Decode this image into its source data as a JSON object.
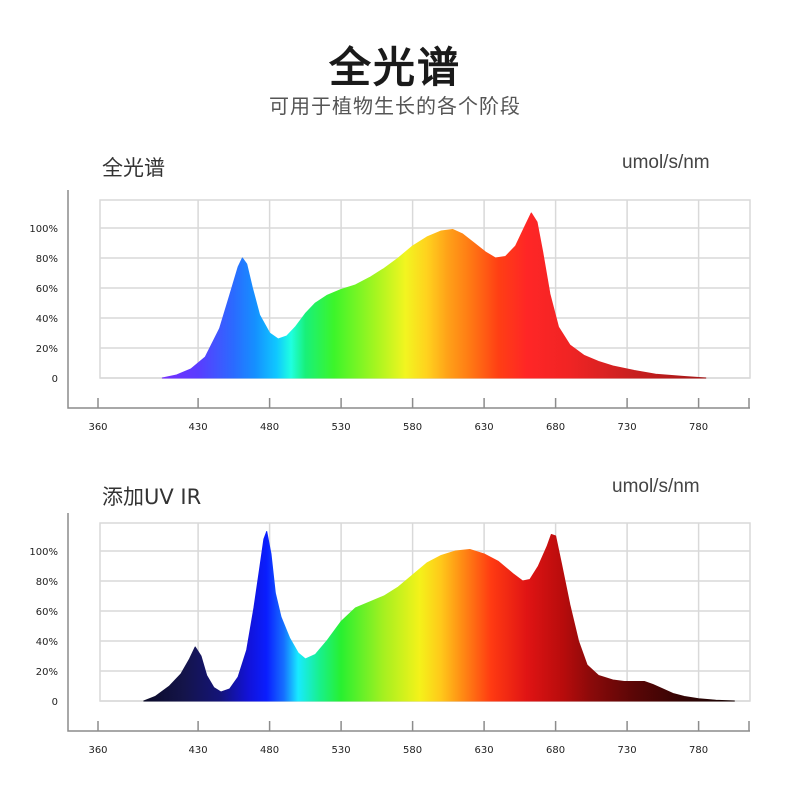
{
  "header": {
    "title": "全光谱",
    "subtitle": "可用于植物生长的各个阶段"
  },
  "chart_data": [
    {
      "type": "area",
      "title": "全光谱",
      "unit": "umol/s/nm",
      "xlabel": "",
      "ylabel": "",
      "x_ticks": [
        360,
        430,
        480,
        530,
        580,
        630,
        680,
        730,
        780
      ],
      "y_ticks": [
        0,
        20,
        40,
        60,
        80,
        100
      ],
      "y_tick_labels": [
        "0",
        "20%",
        "40%",
        "60%",
        "80%",
        "100%"
      ],
      "grid": true,
      "colormap": "visible-spectrum",
      "points": [
        [
          405,
          0
        ],
        [
          415,
          2
        ],
        [
          425,
          6
        ],
        [
          435,
          14
        ],
        [
          445,
          33
        ],
        [
          452,
          55
        ],
        [
          458,
          74
        ],
        [
          461,
          80
        ],
        [
          464,
          76
        ],
        [
          468,
          60
        ],
        [
          473,
          42
        ],
        [
          480,
          30
        ],
        [
          486,
          26
        ],
        [
          492,
          28
        ],
        [
          498,
          34
        ],
        [
          505,
          43
        ],
        [
          512,
          50
        ],
        [
          520,
          55
        ],
        [
          530,
          59
        ],
        [
          540,
          62
        ],
        [
          550,
          67
        ],
        [
          560,
          73
        ],
        [
          570,
          80
        ],
        [
          580,
          88
        ],
        [
          590,
          94
        ],
        [
          600,
          98
        ],
        [
          608,
          99
        ],
        [
          615,
          96
        ],
        [
          623,
          90
        ],
        [
          631,
          84
        ],
        [
          638,
          80
        ],
        [
          645,
          81
        ],
        [
          652,
          88
        ],
        [
          658,
          100
        ],
        [
          663,
          110
        ],
        [
          667,
          104
        ],
        [
          671,
          84
        ],
        [
          676,
          56
        ],
        [
          682,
          34
        ],
        [
          690,
          22
        ],
        [
          700,
          15
        ],
        [
          710,
          11
        ],
        [
          720,
          8
        ],
        [
          735,
          5
        ],
        [
          750,
          2.5
        ],
        [
          770,
          1
        ],
        [
          785,
          0
        ]
      ]
    },
    {
      "type": "area",
      "title": "添加UV IR",
      "unit": "umol/s/nm",
      "xlabel": "",
      "ylabel": "",
      "x_ticks": [
        360,
        430,
        480,
        530,
        580,
        630,
        680,
        730,
        780
      ],
      "y_ticks": [
        0,
        20,
        40,
        60,
        80,
        100
      ],
      "y_tick_labels": [
        "0",
        "20%",
        "40%",
        "60%",
        "80%",
        "100%"
      ],
      "grid": true,
      "colormap": "extended-spectrum",
      "points": [
        [
          392,
          0
        ],
        [
          400,
          3
        ],
        [
          410,
          10
        ],
        [
          418,
          18
        ],
        [
          424,
          28
        ],
        [
          428,
          36
        ],
        [
          432,
          30
        ],
        [
          436,
          17
        ],
        [
          441,
          9
        ],
        [
          446,
          6
        ],
        [
          452,
          8
        ],
        [
          458,
          16
        ],
        [
          464,
          34
        ],
        [
          469,
          62
        ],
        [
          473,
          88
        ],
        [
          476,
          108
        ],
        [
          478,
          113
        ],
        [
          481,
          98
        ],
        [
          484,
          72
        ],
        [
          488,
          56
        ],
        [
          494,
          42
        ],
        [
          500,
          32
        ],
        [
          505,
          28
        ],
        [
          512,
          31
        ],
        [
          520,
          40
        ],
        [
          530,
          53
        ],
        [
          540,
          62
        ],
        [
          550,
          66
        ],
        [
          560,
          70
        ],
        [
          570,
          76
        ],
        [
          580,
          84
        ],
        [
          590,
          92
        ],
        [
          600,
          97
        ],
        [
          610,
          100
        ],
        [
          620,
          101
        ],
        [
          630,
          98
        ],
        [
          640,
          93
        ],
        [
          650,
          85
        ],
        [
          657,
          80
        ],
        [
          662,
          81
        ],
        [
          668,
          90
        ],
        [
          674,
          103
        ],
        [
          677,
          111
        ],
        [
          680,
          110
        ],
        [
          684,
          92
        ],
        [
          690,
          64
        ],
        [
          696,
          40
        ],
        [
          702,
          24
        ],
        [
          710,
          17
        ],
        [
          720,
          14
        ],
        [
          728,
          13
        ],
        [
          736,
          13
        ],
        [
          742,
          13
        ],
        [
          748,
          11
        ],
        [
          755,
          8
        ],
        [
          762,
          5
        ],
        [
          770,
          3
        ],
        [
          780,
          1.5
        ],
        [
          792,
          0.5
        ],
        [
          805,
          0
        ]
      ]
    }
  ]
}
